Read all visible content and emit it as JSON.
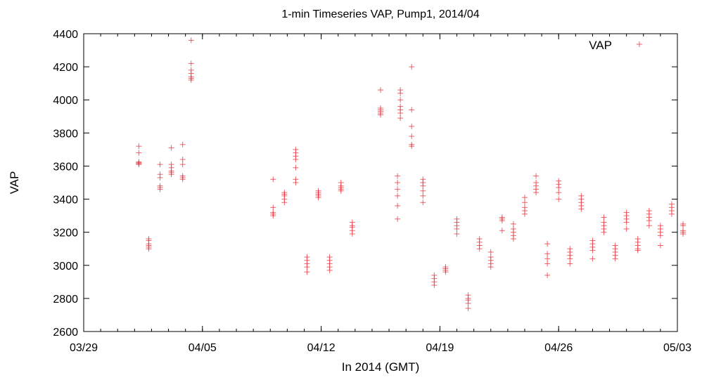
{
  "chart_data": {
    "type": "scatter",
    "title": "1-min Timeseries VAP, Pump1, 2014/04",
    "xlabel": "In 2014 (GMT)",
    "ylabel": "VAP",
    "x_ticks": [
      "03/29",
      "04/05",
      "04/12",
      "04/19",
      "04/26",
      "05/03"
    ],
    "x_tick_dates": [
      "2014-03-29",
      "2014-04-05",
      "2014-04-12",
      "2014-04-19",
      "2014-04-26",
      "2014-05-03"
    ],
    "xlim": [
      "2014-03-29",
      "2014-05-03"
    ],
    "ylim": [
      2600,
      4400
    ],
    "y_ticks": [
      "2600",
      "2800",
      "3000",
      "3200",
      "3400",
      "3600",
      "3800",
      "4000",
      "4200",
      "4400"
    ],
    "grid": false,
    "legend_position": "top-right",
    "marker_color": "#e8303a",
    "series": [
      {
        "name": "VAP",
        "points": [
          {
            "x": "2014-04-01T06:00",
            "y": [
              3620,
              3610,
              3615,
              3625,
              3680,
              3720
            ]
          },
          {
            "x": "2014-04-01T20:00",
            "y": [
              3100,
              3110,
              3120,
              3130,
              3150,
              3160
            ]
          },
          {
            "x": "2014-04-02T12:00",
            "y": [
              3460,
              3470,
              3480,
              3530,
              3550,
              3610
            ]
          },
          {
            "x": "2014-04-03T04:00",
            "y": [
              3550,
              3560,
              3570,
              3590,
              3610,
              3710
            ]
          },
          {
            "x": "2014-04-03T20:00",
            "y": [
              3520,
              3530,
              3540,
              3610,
              3640,
              3730
            ]
          },
          {
            "x": "2014-04-04T08:00",
            "y": [
              4120,
              4130,
              4140,
              4160,
              4180,
              4220,
              4360
            ]
          },
          {
            "x": "2014-04-09T04:00",
            "y": [
              3300,
              3310,
              3320,
              3350,
              3520
            ]
          },
          {
            "x": "2014-04-09T20:00",
            "y": [
              3380,
              3400,
              3420,
              3430,
              3440
            ]
          },
          {
            "x": "2014-04-10T12:00",
            "y": [
              3500,
              3520,
              3590,
              3640,
              3660,
              3680,
              3700
            ]
          },
          {
            "x": "2014-04-11T04:00",
            "y": [
              2960,
              2990,
              3010,
              3030,
              3050
            ]
          },
          {
            "x": "2014-04-11T20:00",
            "y": [
              3410,
              3420,
              3430,
              3440,
              3450
            ]
          },
          {
            "x": "2014-04-12T12:00",
            "y": [
              2970,
              2990,
              3010,
              3030,
              3050
            ]
          },
          {
            "x": "2014-04-13T04:00",
            "y": [
              3450,
              3460,
              3470,
              3480,
              3500
            ]
          },
          {
            "x": "2014-04-13T20:00",
            "y": [
              3190,
              3210,
              3230,
              3240,
              3260
            ]
          },
          {
            "x": "2014-04-15T12:00",
            "y": [
              3910,
              3920,
              3930,
              3940,
              3950,
              4060
            ]
          },
          {
            "x": "2014-04-16T12:00",
            "y": [
              3280,
              3360,
              3420,
              3460,
              3500,
              3540
            ]
          },
          {
            "x": "2014-04-16T16:00",
            "y": [
              3890,
              3920,
              3940,
              3960,
              4000,
              4040,
              4060
            ]
          },
          {
            "x": "2014-04-17T08:00",
            "y": [
              3720,
              3730,
              3780,
              3840,
              3940,
              4200
            ]
          },
          {
            "x": "2014-04-18T00:00",
            "y": [
              3380,
              3420,
              3450,
              3480,
              3500,
              3520
            ]
          },
          {
            "x": "2014-04-18T16:00",
            "y": [
              2880,
              2900,
              2920,
              2940
            ]
          },
          {
            "x": "2014-04-19T08:00",
            "y": [
              2960,
              2970,
              2980,
              2990
            ]
          },
          {
            "x": "2014-04-20T00:00",
            "y": [
              3190,
              3220,
              3240,
              3260,
              3280
            ]
          },
          {
            "x": "2014-04-20T16:00",
            "y": [
              2740,
              2770,
              2790,
              2800,
              2820
            ]
          },
          {
            "x": "2014-04-21T08:00",
            "y": [
              3100,
              3120,
              3140,
              3160
            ]
          },
          {
            "x": "2014-04-22T00:00",
            "y": [
              2990,
              3010,
              3030,
              3050,
              3080
            ]
          },
          {
            "x": "2014-04-22T16:00",
            "y": [
              3210,
              3270,
              3280,
              3290
            ]
          },
          {
            "x": "2014-04-23T08:00",
            "y": [
              3160,
              3180,
              3200,
              3220,
              3250
            ]
          },
          {
            "x": "2014-04-24T00:00",
            "y": [
              3310,
              3330,
              3350,
              3380,
              3410
            ]
          },
          {
            "x": "2014-04-24T16:00",
            "y": [
              3440,
              3460,
              3480,
              3500,
              3540
            ]
          },
          {
            "x": "2014-04-25T08:00",
            "y": [
              2940,
              3010,
              3040,
              3070,
              3130
            ]
          },
          {
            "x": "2014-04-26T00:00",
            "y": [
              3400,
              3440,
              3470,
              3490,
              3510
            ]
          },
          {
            "x": "2014-04-26T16:00",
            "y": [
              3010,
              3040,
              3060,
              3080,
              3100
            ]
          },
          {
            "x": "2014-04-27T08:00",
            "y": [
              3340,
              3360,
              3380,
              3400,
              3420
            ]
          },
          {
            "x": "2014-04-28T00:00",
            "y": [
              3040,
              3090,
              3110,
              3130,
              3150
            ]
          },
          {
            "x": "2014-04-28T16:00",
            "y": [
              3200,
              3220,
              3240,
              3260,
              3290
            ]
          },
          {
            "x": "2014-04-29T08:00",
            "y": [
              3040,
              3060,
              3080,
              3100,
              3120
            ]
          },
          {
            "x": "2014-04-30T00:00",
            "y": [
              3220,
              3260,
              3280,
              3300,
              3320
            ]
          },
          {
            "x": "2014-04-30T16:00",
            "y": [
              3090,
              3100,
              3120,
              3140,
              3160
            ]
          },
          {
            "x": "2014-05-01T08:00",
            "y": [
              3240,
              3270,
              3290,
              3310,
              3330
            ]
          },
          {
            "x": "2014-05-02T00:00",
            "y": [
              3120,
              3180,
              3200,
              3220,
              3240
            ]
          },
          {
            "x": "2014-05-02T16:00",
            "y": [
              3310,
              3330,
              3350,
              3370
            ]
          },
          {
            "x": "2014-05-03T08:00",
            "y": [
              3190,
              3200,
              3210,
              3240,
              3250
            ]
          }
        ]
      }
    ]
  }
}
